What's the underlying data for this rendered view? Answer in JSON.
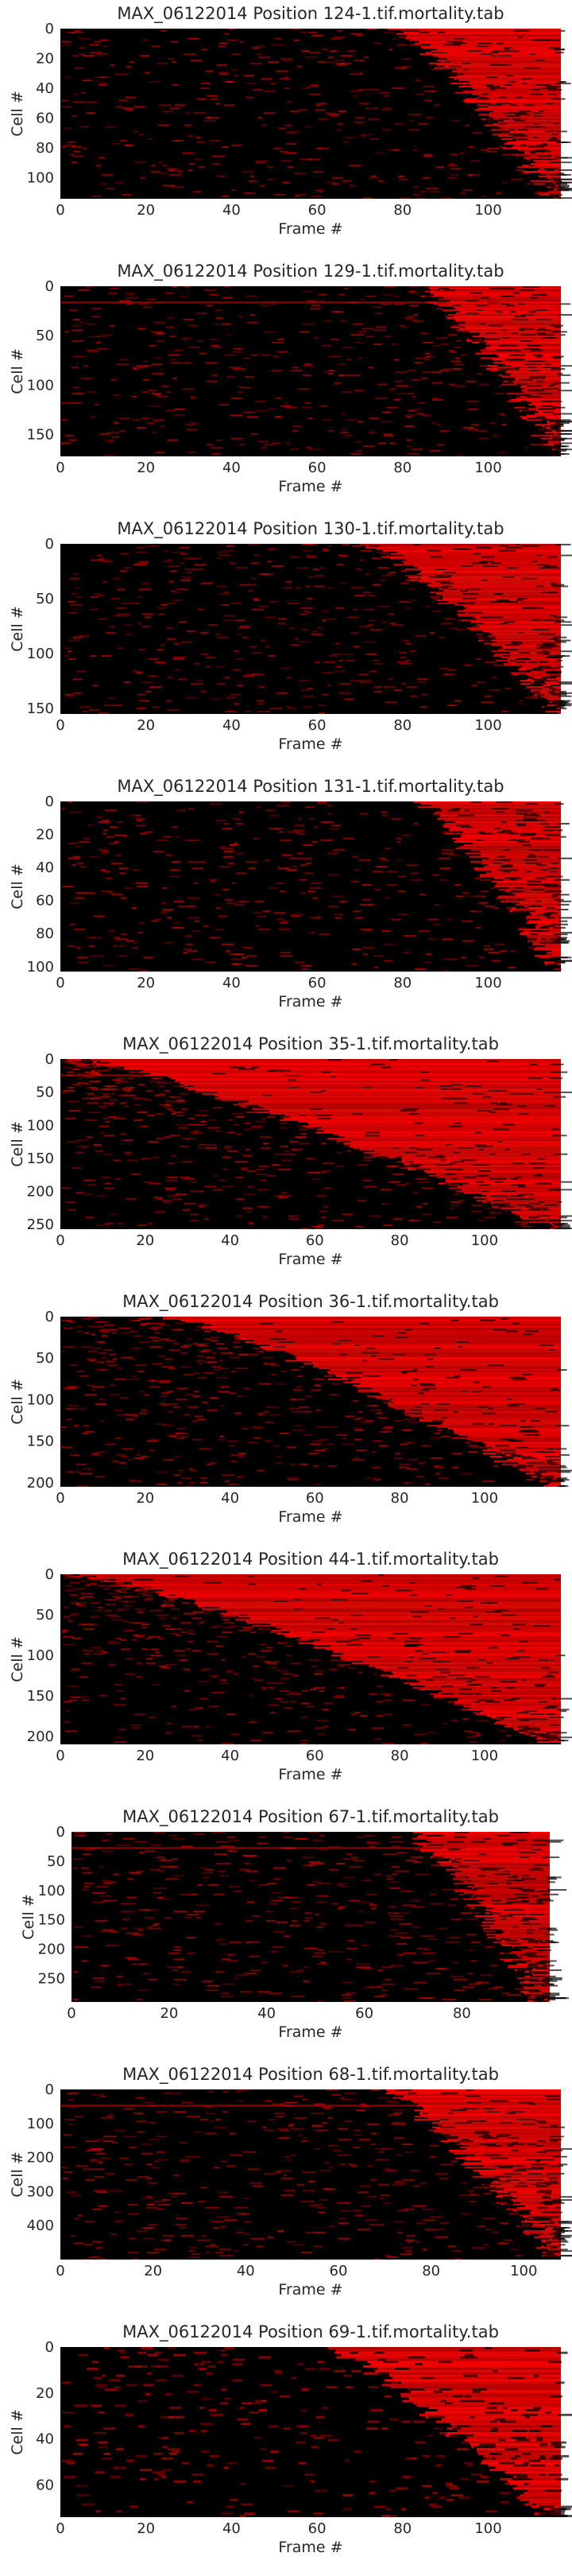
{
  "chart_data": [
    {
      "type": "heatmap",
      "title": "MAX_06122014 Position 124-1.tif.mortality.tab",
      "xlabel": "Frame #",
      "ylabel": "Cell #",
      "xlim": [
        0,
        117
      ],
      "ylim": [
        0,
        114
      ],
      "xticks": [
        0,
        20,
        40,
        60,
        80,
        100
      ],
      "yticks": [
        0,
        20,
        40,
        60,
        80,
        100
      ],
      "colormap": [
        "#000000",
        "#ff0000"
      ],
      "grid": false,
      "onset_first": 79,
      "onset_last": 115
    },
    {
      "type": "heatmap",
      "title": "MAX_06122014 Position 129-1.tif.mortality.tab",
      "xlabel": "Frame #",
      "ylabel": "Cell #",
      "xlim": [
        0,
        117
      ],
      "ylim": [
        0,
        172
      ],
      "xticks": [
        0,
        20,
        40,
        60,
        80,
        100
      ],
      "yticks": [
        0,
        50,
        100,
        150
      ],
      "colormap": [
        "#000000",
        "#ff0000"
      ],
      "grid": false,
      "onset_first": 84,
      "onset_last": 116
    },
    {
      "type": "heatmap",
      "title": "MAX_06122014 Position 130-1.tif.mortality.tab",
      "xlabel": "Frame #",
      "ylabel": "Cell #",
      "xlim": [
        0,
        117
      ],
      "ylim": [
        0,
        155
      ],
      "xticks": [
        0,
        20,
        40,
        60,
        80,
        100
      ],
      "yticks": [
        0,
        50,
        100,
        150
      ],
      "colormap": [
        "#000000",
        "#ff0000"
      ],
      "grid": false,
      "onset_first": 72,
      "onset_last": 116
    },
    {
      "type": "heatmap",
      "title": "MAX_06122014 Position 131-1.tif.mortality.tab",
      "xlabel": "Frame #",
      "ylabel": "Cell #",
      "xlim": [
        0,
        117
      ],
      "ylim": [
        0,
        103
      ],
      "xticks": [
        0,
        20,
        40,
        60,
        80,
        100
      ],
      "yticks": [
        0,
        20,
        40,
        60,
        80,
        100
      ],
      "colormap": [
        "#000000",
        "#ff0000"
      ],
      "grid": false,
      "onset_first": 84,
      "onset_last": 116
    },
    {
      "type": "heatmap",
      "title": "MAX_06122014 Position 35-1.tif.mortality.tab",
      "xlabel": "Frame #",
      "ylabel": "Cell #",
      "xlim": [
        0,
        118
      ],
      "ylim": [
        0,
        257
      ],
      "xticks": [
        0,
        20,
        40,
        60,
        80,
        100
      ],
      "yticks": [
        0,
        50,
        100,
        150,
        200,
        250
      ],
      "colormap": [
        "#000000",
        "#ff0000"
      ],
      "grid": false,
      "onset_first": 5,
      "onset_last": 116
    },
    {
      "type": "heatmap",
      "title": "MAX_06122014 Position 36-1.tif.mortality.tab",
      "xlabel": "Frame #",
      "ylabel": "Cell #",
      "xlim": [
        0,
        118
      ],
      "ylim": [
        0,
        205
      ],
      "xticks": [
        0,
        20,
        40,
        60,
        80,
        100
      ],
      "yticks": [
        0,
        50,
        100,
        150,
        200
      ],
      "colormap": [
        "#000000",
        "#ff0000"
      ],
      "grid": false,
      "onset_first": 25,
      "onset_last": 116
    },
    {
      "type": "heatmap",
      "title": "MAX_06122014 Position 44-1.tif.mortality.tab",
      "xlabel": "Frame #",
      "ylabel": "Cell #",
      "xlim": [
        0,
        118
      ],
      "ylim": [
        0,
        210
      ],
      "xticks": [
        0,
        20,
        40,
        60,
        80,
        100
      ],
      "yticks": [
        0,
        50,
        100,
        150,
        200
      ],
      "colormap": [
        "#000000",
        "#ff0000"
      ],
      "grid": false,
      "onset_first": 5,
      "onset_last": 116
    },
    {
      "type": "heatmap",
      "title": "MAX_06122014 Position 67-1.tif.mortality.tab",
      "xlabel": "Frame #",
      "ylabel": "Cell #",
      "xlim": [
        0,
        98
      ],
      "ylim": [
        0,
        290
      ],
      "xticks": [
        0,
        20,
        40,
        60,
        80
      ],
      "yticks": [
        0,
        50,
        100,
        150,
        200,
        250
      ],
      "colormap": [
        "#000000",
        "#ff0000"
      ],
      "grid": false,
      "onset_first": 70,
      "onset_last": 96
    },
    {
      "type": "heatmap",
      "title": "MAX_06122014 Position 68-1.tif.mortality.tab",
      "xlabel": "Frame #",
      "ylabel": "Cell #",
      "xlim": [
        0,
        108
      ],
      "ylim": [
        0,
        500
      ],
      "xticks": [
        0,
        20,
        40,
        60,
        80,
        100
      ],
      "yticks": [
        0,
        100,
        200,
        300,
        400
      ],
      "colormap": [
        "#000000",
        "#ff0000"
      ],
      "grid": false,
      "onset_first": 70,
      "onset_last": 107
    },
    {
      "type": "heatmap",
      "title": "MAX_06122014 Position 69-1.tif.mortality.tab",
      "xlabel": "Frame #",
      "ylabel": "Cell #",
      "xlim": [
        0,
        117
      ],
      "ylim": [
        0,
        74
      ],
      "xticks": [
        0,
        20,
        40,
        60,
        80,
        100
      ],
      "yticks": [
        0,
        20,
        40,
        60
      ],
      "colormap": [
        "#000000",
        "#ff0000"
      ],
      "grid": false,
      "onset_first": 62,
      "onset_last": 114
    }
  ]
}
